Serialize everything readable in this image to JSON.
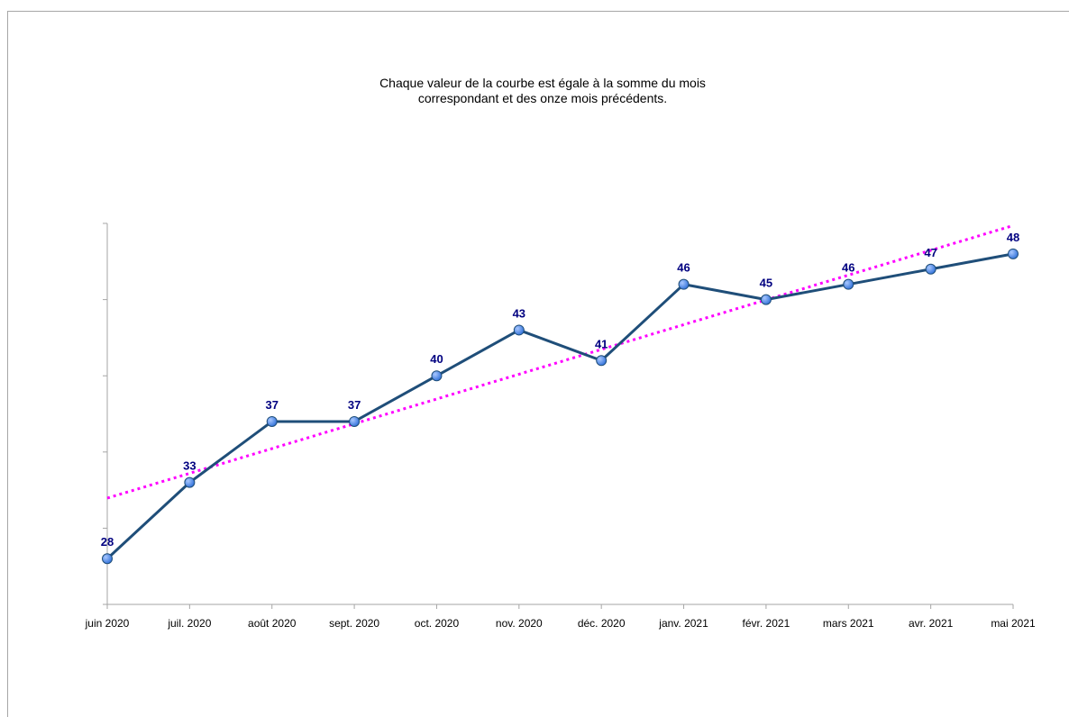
{
  "chart_data": {
    "type": "line",
    "title_lines": [
      "Chaque valeur de la courbe est égale à la somme du mois",
      "correspondant et des onze mois précédents."
    ],
    "xlabel": "",
    "ylabel": "",
    "categories": [
      "juin 2020",
      "juil. 2020",
      "août 2020",
      "sept. 2020",
      "oct. 2020",
      "nov. 2020",
      "déc. 2020",
      "janv. 2021",
      "févr. 2021",
      "mars 2021",
      "avr. 2021",
      "mai 2021"
    ],
    "series": [
      {
        "values": [
          28,
          33,
          37,
          37,
          40,
          43,
          41,
          46,
          45,
          46,
          47,
          48
        ],
        "color": "#1f4e79",
        "marker_color": "#2e6fd8",
        "data_labels": true
      }
    ],
    "trendline": {
      "type": "linear",
      "color": "#ff00ff",
      "style": "dotted"
    },
    "ylim": [
      25,
      50
    ],
    "y_tick_labels_shown": false,
    "grid": false,
    "legend": "none"
  }
}
